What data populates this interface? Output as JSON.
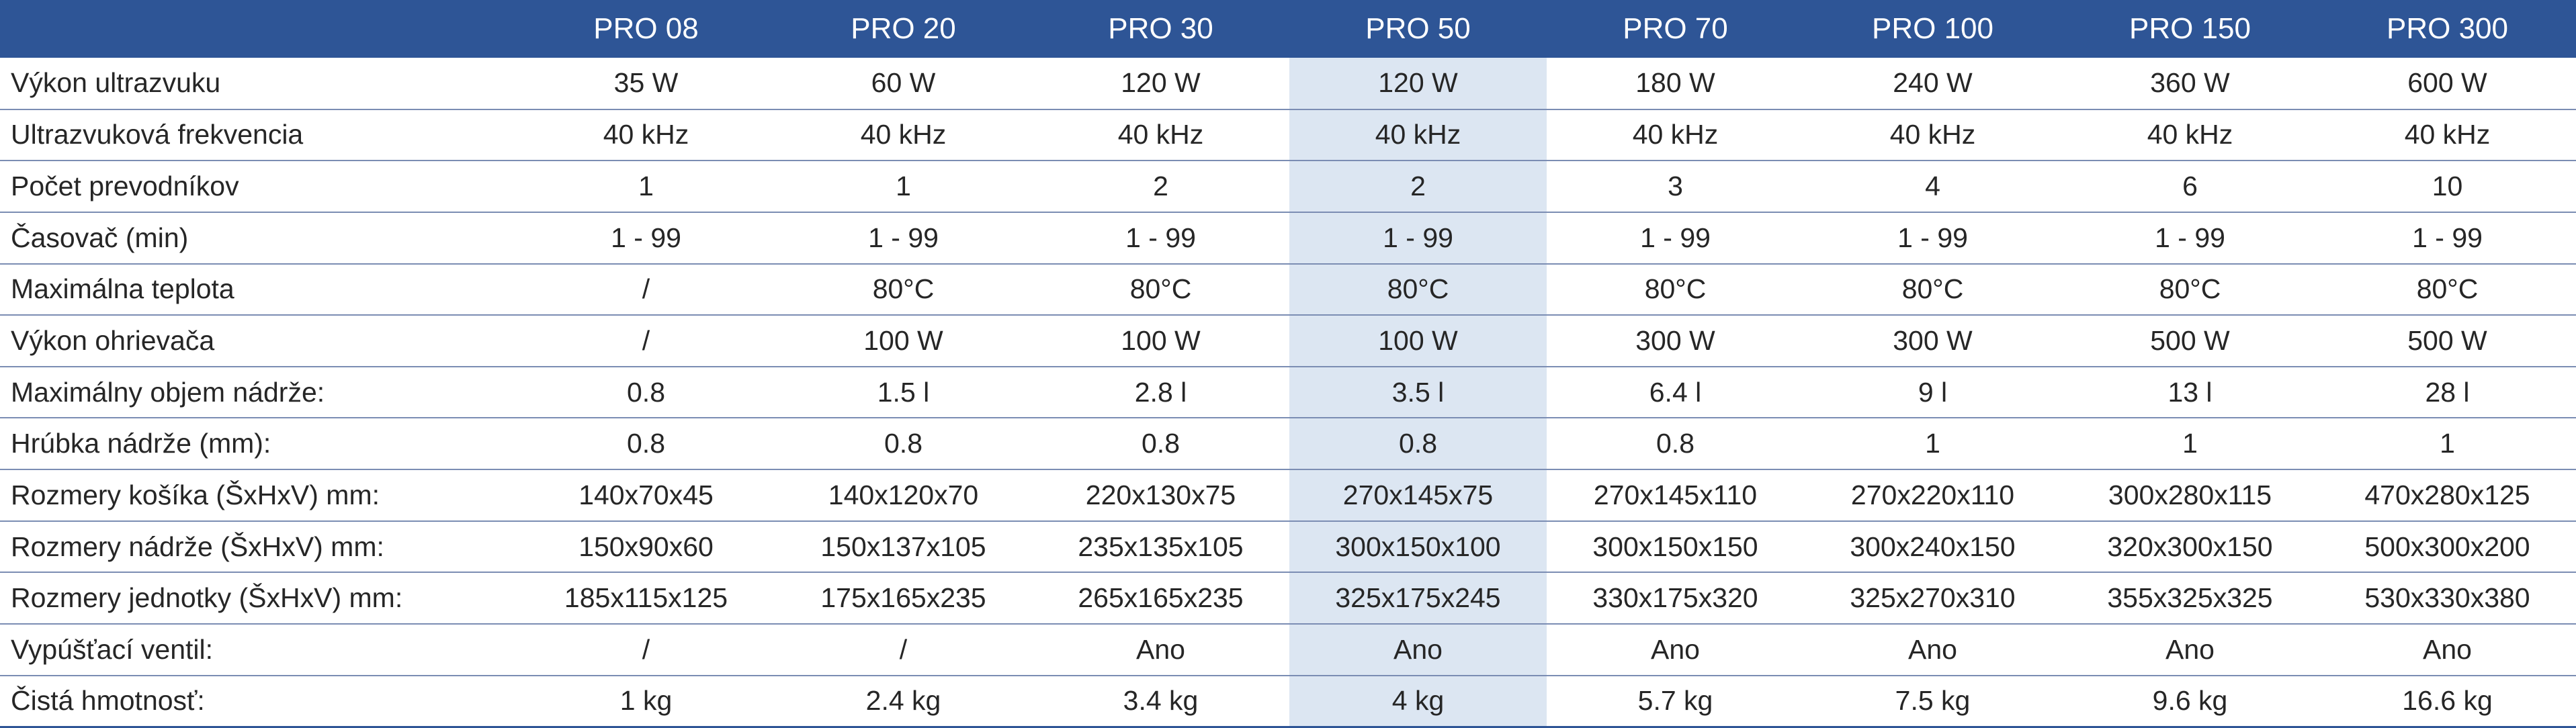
{
  "table": {
    "columns": [
      "PRO 08",
      "PRO 20",
      "PRO 30",
      "PRO 50",
      "PRO 70",
      "PRO 100",
      "PRO 150",
      "PRO 300"
    ],
    "highlight_column": 3,
    "colors": {
      "header_bg": "#2e5596",
      "header_text": "#ffffff",
      "highlight_bg": "#dce6f2",
      "divider": "#7b8db3"
    },
    "rows": [
      {
        "label": "Výkon ultrazvuku",
        "values": [
          "35 W",
          "60 W",
          "120 W",
          "120 W",
          "180 W",
          "240 W",
          "360 W",
          "600 W"
        ]
      },
      {
        "label": "Ultrazvuková frekvencia",
        "values": [
          "40 kHz",
          "40 kHz",
          "40 kHz",
          "40 kHz",
          "40 kHz",
          "40 kHz",
          "40 kHz",
          "40 kHz"
        ]
      },
      {
        "label": "Počet prevodníkov",
        "values": [
          "1",
          "1",
          "2",
          "2",
          "3",
          "4",
          "6",
          "10"
        ]
      },
      {
        "label": "Časovač (min)",
        "values": [
          "1 - 99",
          "1 - 99",
          "1 - 99",
          "1 - 99",
          "1 - 99",
          "1 - 99",
          "1 - 99",
          "1 - 99"
        ]
      },
      {
        "label": "Maximálna teplota",
        "values": [
          "/",
          "80°C",
          "80°C",
          "80°C",
          "80°C",
          "80°C",
          "80°C",
          "80°C"
        ]
      },
      {
        "label": "Výkon ohrievača",
        "values": [
          "/",
          "100 W",
          "100 W",
          "100 W",
          "300 W",
          "300 W",
          "500 W",
          "500 W"
        ]
      },
      {
        "label": "Maximálny objem nádrže:",
        "values": [
          "0.8",
          "1.5 l",
          "2.8 l",
          "3.5 l",
          "6.4 l",
          "9 l",
          "13 l",
          "28 l"
        ]
      },
      {
        "label": "Hrúbka nádrže (mm):",
        "values": [
          "0.8",
          "0.8",
          "0.8",
          "0.8",
          "0.8",
          "1",
          "1",
          "1"
        ]
      },
      {
        "label": "Rozmery košíka (ŠxHxV) mm:",
        "values": [
          "140x70x45",
          "140x120x70",
          "220x130x75",
          "270x145x75",
          "270x145x110",
          "270x220x110",
          "300x280x115",
          "470x280x125"
        ]
      },
      {
        "label": "Rozmery nádrže (ŠxHxV) mm:",
        "values": [
          "150x90x60",
          "150x137x105",
          "235x135x105",
          "300x150x100",
          "300x150x150",
          "300x240x150",
          "320x300x150",
          "500x300x200"
        ]
      },
      {
        "label": "Rozmery jednotky (ŠxHxV) mm:",
        "values": [
          "185x115x125",
          "175x165x235",
          "265x165x235",
          "325x175x245",
          "330x175x320",
          "325x270x310",
          "355x325x325",
          "530x330x380"
        ]
      },
      {
        "label": "Vypúšťací ventil:",
        "values": [
          "/",
          "/",
          "Ano",
          "Ano",
          "Ano",
          "Ano",
          "Ano",
          "Ano"
        ]
      },
      {
        "label": "Čistá hmotnosť:",
        "values": [
          "1 kg",
          "2.4 kg",
          "3.4 kg",
          "4 kg",
          "5.7 kg",
          "7.5 kg",
          "9.6 kg",
          "16.6 kg"
        ]
      }
    ]
  }
}
